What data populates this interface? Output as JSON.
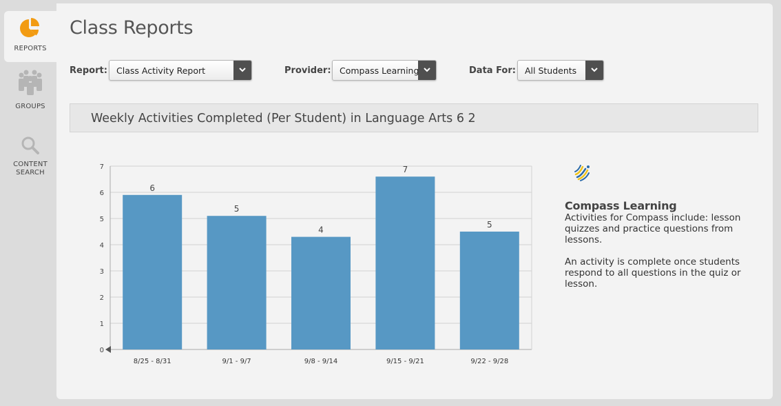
{
  "sidebar": {
    "items": [
      {
        "label": "REPORTS",
        "icon": "pie-chart-icon",
        "active": true
      },
      {
        "label": "GROUPS",
        "icon": "people-group-icon",
        "active": false
      },
      {
        "label": "CONTENT SEARCH",
        "icon": "magnifier-icon",
        "active": false
      }
    ]
  },
  "page": {
    "title": "Class Reports"
  },
  "filters": {
    "report": {
      "label": "Report:",
      "value": "Class Activity Report"
    },
    "provider": {
      "label": "Provider:",
      "value": "Compass Learning"
    },
    "data_for": {
      "label": "Data For:",
      "value": "All Students"
    }
  },
  "report": {
    "heading": "Weekly Activities Completed (Per Student) in Language Arts 6 2"
  },
  "chart_data": {
    "type": "bar",
    "categories": [
      "8/25 - 8/31",
      "9/1 - 9/7",
      "9/8 - 9/14",
      "9/15 - 9/21",
      "9/22 - 9/28"
    ],
    "values": [
      5.9,
      5.1,
      4.3,
      6.6,
      4.5
    ],
    "data_labels": [
      "6",
      "5",
      "4",
      "7",
      "5"
    ],
    "yticks": [
      "0",
      "1",
      "2",
      "3",
      "4",
      "5",
      "6",
      "7"
    ],
    "ylim": [
      0,
      7
    ],
    "bar_color": "#5798c4",
    "grid": true,
    "title": "",
    "xlabel": "",
    "ylabel": ""
  },
  "info": {
    "provider_name": "Compass Learning",
    "logo_icon": "compass-learning-logo-icon",
    "description": "Activities for Compass include:  lesson quizzes and practice questions from lessons.",
    "completion_note": "An activity is complete once students respond to all questions in the quiz or lesson."
  },
  "colors": {
    "accent": "#f29b12",
    "sidebar_bg": "#dcdcdc",
    "panel_bg": "#f3f3f3",
    "caret_bg": "#4f4f4f"
  }
}
